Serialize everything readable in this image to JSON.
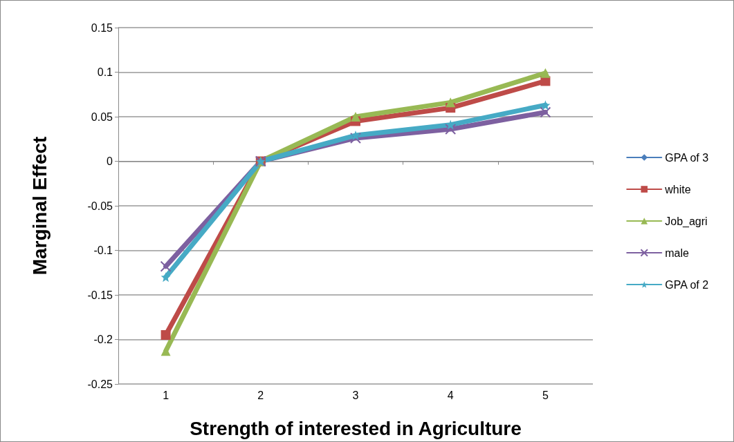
{
  "chart_data": {
    "type": "line",
    "xlabel": "Strength of interested in Agriculture",
    "ylabel": "Marginal Effect",
    "categories": [
      "1",
      "2",
      "3",
      "4",
      "5"
    ],
    "ylim": [
      -0.25,
      0.15
    ],
    "yticks": [
      -0.25,
      -0.2,
      -0.15,
      -0.1,
      -0.05,
      0,
      0.05,
      0.1,
      0.15
    ],
    "grid": "y",
    "legend": "right",
    "series": [
      {
        "name": "GPA of 3",
        "color": "#4a7ebb",
        "marker": "diamond",
        "values": [
          null,
          null,
          null,
          null,
          null
        ]
      },
      {
        "name": "white",
        "color": "#be4b48",
        "marker": "square",
        "values": [
          -0.195,
          0,
          0.045,
          0.06,
          0.09
        ]
      },
      {
        "name": "Job_agri",
        "color": "#98b954",
        "marker": "triangle",
        "values": [
          -0.213,
          0,
          0.05,
          0.066,
          0.099
        ]
      },
      {
        "name": "male",
        "color": "#7d60a0",
        "marker": "cross",
        "values": [
          -0.118,
          0,
          0.026,
          0.036,
          0.055
        ]
      },
      {
        "name": "GPA of 2",
        "color": "#46aac5",
        "marker": "star",
        "values": [
          -0.13,
          0,
          0.029,
          0.041,
          0.063
        ]
      }
    ]
  }
}
